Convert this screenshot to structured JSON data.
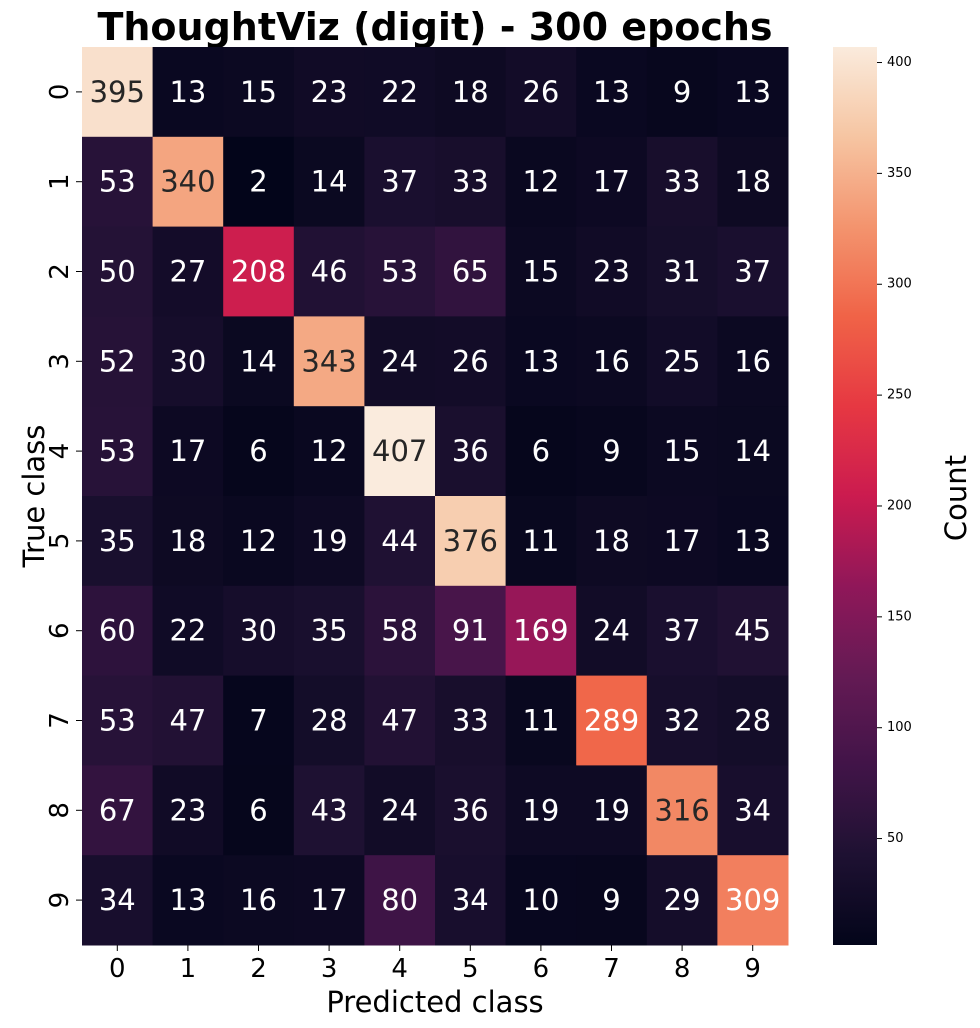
{
  "chart_data": {
    "type": "heatmap",
    "title": "ThoughtViz (digit) - 300 epochs",
    "xlabel": "Predicted class",
    "ylabel": "True class",
    "x_categories": [
      "0",
      "1",
      "2",
      "3",
      "4",
      "5",
      "6",
      "7",
      "8",
      "9"
    ],
    "y_categories": [
      "0",
      "1",
      "2",
      "3",
      "4",
      "5",
      "6",
      "7",
      "8",
      "9"
    ],
    "values": [
      [
        395,
        13,
        15,
        23,
        22,
        18,
        26,
        13,
        9,
        13
      ],
      [
        53,
        340,
        2,
        14,
        37,
        33,
        12,
        17,
        33,
        18
      ],
      [
        50,
        27,
        208,
        46,
        53,
        65,
        15,
        23,
        31,
        37
      ],
      [
        52,
        30,
        14,
        343,
        24,
        26,
        13,
        16,
        25,
        16
      ],
      [
        53,
        17,
        6,
        12,
        407,
        36,
        6,
        9,
        15,
        14
      ],
      [
        35,
        18,
        12,
        19,
        44,
        376,
        11,
        18,
        17,
        13
      ],
      [
        60,
        22,
        30,
        35,
        58,
        91,
        169,
        24,
        37,
        45
      ],
      [
        53,
        47,
        7,
        28,
        47,
        33,
        11,
        289,
        32,
        28
      ],
      [
        67,
        23,
        6,
        43,
        24,
        36,
        19,
        19,
        316,
        34
      ],
      [
        34,
        13,
        16,
        17,
        80,
        34,
        10,
        9,
        29,
        309
      ]
    ],
    "colorbar": {
      "label": "Count",
      "range": [
        2,
        407
      ],
      "ticks": [
        50,
        100,
        150,
        200,
        250,
        300,
        350,
        400
      ]
    },
    "colormap": "rocket",
    "grid": false
  }
}
